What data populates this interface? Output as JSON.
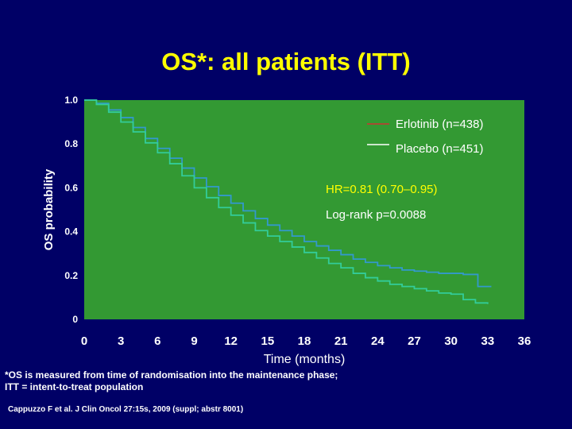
{
  "slide": {
    "title": "OS*: all patients (ITT)",
    "footnote_line1": "*OS is measured from time of randomisation into the maintenance phase;",
    "footnote_line2": "ITT = intent-to-treat population",
    "citation": "Cappuzzo F et al. J Clin Oncol 27:15s, 2009 (suppl; abstr 8001)"
  },
  "colors": {
    "background": "#000066",
    "plot_area": "#339933",
    "title": "#ffff00",
    "erlotinib": "#3399cc",
    "placebo": "#33cc99",
    "legend_erlotinib_marker": "#cc3333",
    "legend_placebo_marker": "#ffffff",
    "annotation_highlight": "#ffff00"
  },
  "chart_data": {
    "type": "line",
    "xlabel": "Time (months)",
    "ylabel": "OS probability",
    "xlim": [
      0,
      36
    ],
    "ylim": [
      0,
      1
    ],
    "xticks": [
      "0",
      "3",
      "6",
      "9",
      "12",
      "15",
      "18",
      "21",
      "24",
      "27",
      "30",
      "33",
      "36"
    ],
    "yticks": [
      "0",
      "0.2",
      "0.4",
      "0.6",
      "0.8",
      "1.0"
    ],
    "legend_position": "top-right",
    "grid": false,
    "annotations": {
      "hr": "HR=0.81 (0.70–0.95)",
      "logrank": "Log-rank p=0.0088"
    },
    "series": [
      {
        "name": "Erlotinib (n=438)",
        "x": [
          0,
          1,
          2,
          3,
          4,
          5,
          6,
          7,
          8,
          9,
          10,
          11,
          12,
          13,
          14,
          15,
          16,
          17,
          18,
          19,
          20,
          21,
          22,
          23,
          24,
          25,
          26,
          27,
          28,
          29,
          30,
          31,
          32,
          32.2,
          33,
          33.3
        ],
        "y": [
          1.0,
          0.985,
          0.955,
          0.92,
          0.875,
          0.825,
          0.78,
          0.735,
          0.69,
          0.645,
          0.605,
          0.565,
          0.53,
          0.495,
          0.46,
          0.43,
          0.405,
          0.38,
          0.355,
          0.335,
          0.315,
          0.295,
          0.275,
          0.26,
          0.245,
          0.235,
          0.225,
          0.22,
          0.215,
          0.21,
          0.21,
          0.205,
          0.205,
          0.15,
          0.15,
          0.15
        ]
      },
      {
        "name": "Placebo (n=451)",
        "x": [
          0,
          1,
          2,
          3,
          4,
          5,
          6,
          7,
          8,
          9,
          10,
          11,
          12,
          13,
          14,
          15,
          16,
          17,
          18,
          19,
          20,
          21,
          22,
          23,
          24,
          25,
          26,
          27,
          28,
          29,
          30,
          31,
          32,
          33
        ],
        "y": [
          1.0,
          0.98,
          0.945,
          0.9,
          0.855,
          0.805,
          0.76,
          0.71,
          0.655,
          0.6,
          0.555,
          0.51,
          0.475,
          0.44,
          0.405,
          0.38,
          0.355,
          0.33,
          0.305,
          0.28,
          0.255,
          0.235,
          0.21,
          0.19,
          0.175,
          0.16,
          0.15,
          0.14,
          0.13,
          0.12,
          0.115,
          0.09,
          0.075,
          0.07
        ]
      }
    ]
  }
}
